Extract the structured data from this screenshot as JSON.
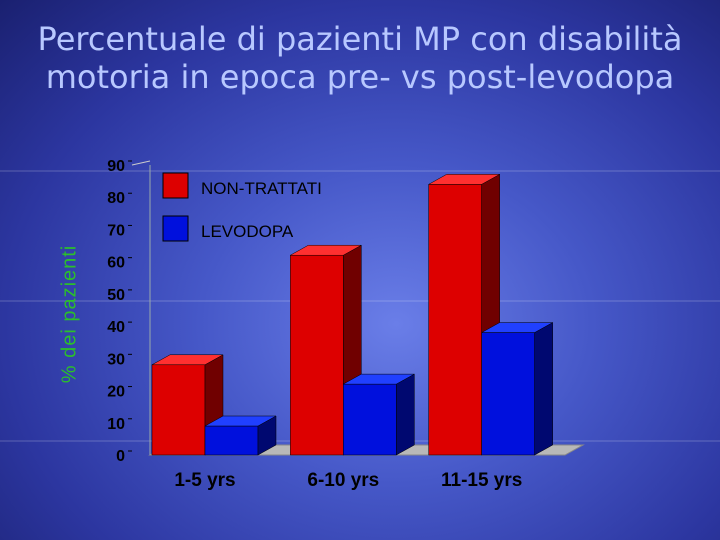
{
  "title_lines": [
    "Percentuale di pazienti MP con disabilità",
    "motoria in epoca pre- vs post-levodopa"
  ],
  "colors": {
    "series1": "#dd0000",
    "series2": "#0010dd",
    "ylabel": "#2bbf2b"
  },
  "chart_data": {
    "type": "bar",
    "title": "Percentuale di pazienti MP con disabilità motoria in epoca pre- vs post-levodopa",
    "xlabel": "",
    "ylabel": "% dei pazienti",
    "categories": [
      "1-5 yrs",
      "6-10 yrs",
      "11-15 yrs"
    ],
    "series": [
      {
        "name": "NON-TRATTATI",
        "values": [
          28,
          62,
          84
        ]
      },
      {
        "name": "LEVODOPA",
        "values": [
          9,
          22,
          38
        ]
      }
    ],
    "ylim": [
      0,
      90
    ],
    "yticks": [
      "0",
      "10",
      "20",
      "30",
      "40",
      "50",
      "60",
      "70",
      "80",
      "90"
    ],
    "grid": false,
    "legend": "top-left"
  }
}
